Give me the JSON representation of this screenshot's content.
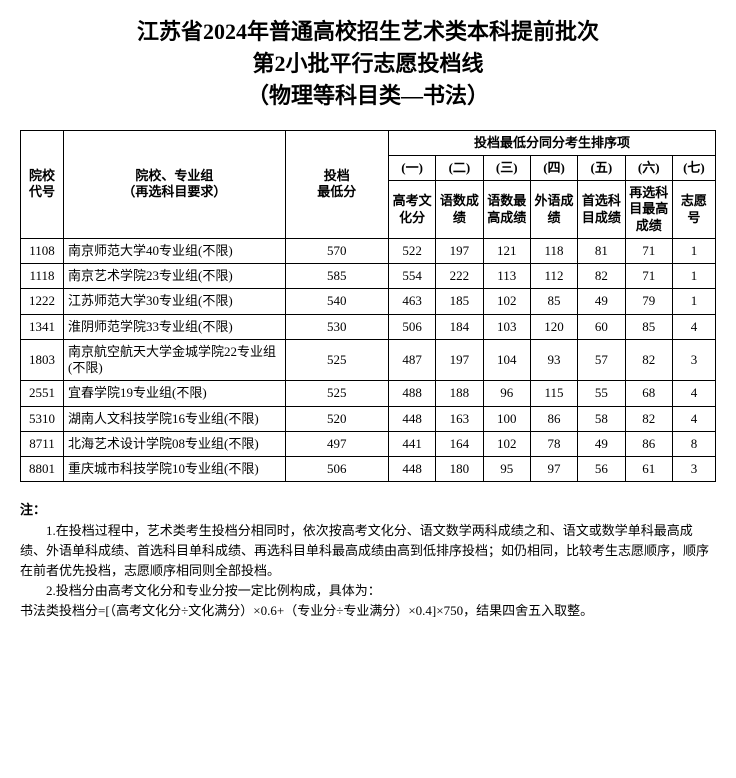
{
  "title_lines": [
    "江苏省2024年普通高校招生艺术类本科提前批次",
    "第2小批平行志愿投档线",
    "（物理等科目类—书法）"
  ],
  "header": {
    "code": "院校\n代号",
    "name": "院校、专业组\n（再选科目要求）",
    "score": "投档\n最低分",
    "tie_group": "投档最低分同分考生排序项",
    "tie_num": [
      "(一)",
      "(二)",
      "(三)",
      "(四)",
      "(五)",
      "(六)",
      "(七)"
    ],
    "tie_labels": [
      "高考文化分",
      "语数成绩",
      "语数最高成绩",
      "外语成绩",
      "首选科目成绩",
      "再选科目最高成绩",
      "志愿号"
    ]
  },
  "rows": [
    {
      "code": "1108",
      "name": "南京师范大学40专业组(不限)",
      "score": "570",
      "t": [
        "522",
        "197",
        "121",
        "118",
        "81",
        "71",
        "1"
      ]
    },
    {
      "code": "1118",
      "name": "南京艺术学院23专业组(不限)",
      "score": "585",
      "t": [
        "554",
        "222",
        "113",
        "112",
        "82",
        "71",
        "1"
      ]
    },
    {
      "code": "1222",
      "name": "江苏师范大学30专业组(不限)",
      "score": "540",
      "t": [
        "463",
        "185",
        "102",
        "85",
        "49",
        "79",
        "1"
      ]
    },
    {
      "code": "1341",
      "name": "淮阴师范学院33专业组(不限)",
      "score": "530",
      "t": [
        "506",
        "184",
        "103",
        "120",
        "60",
        "85",
        "4"
      ]
    },
    {
      "code": "1803",
      "name": "南京航空航天大学金城学院22专业组(不限)",
      "score": "525",
      "t": [
        "487",
        "197",
        "104",
        "93",
        "57",
        "82",
        "3"
      ]
    },
    {
      "code": "2551",
      "name": "宜春学院19专业组(不限)",
      "score": "525",
      "t": [
        "488",
        "188",
        "96",
        "115",
        "55",
        "68",
        "4"
      ]
    },
    {
      "code": "5310",
      "name": "湖南人文科技学院16专业组(不限)",
      "score": "520",
      "t": [
        "448",
        "163",
        "100",
        "86",
        "58",
        "82",
        "4"
      ]
    },
    {
      "code": "8711",
      "name": "北海艺术设计学院08专业组(不限)",
      "score": "497",
      "t": [
        "441",
        "164",
        "102",
        "78",
        "49",
        "86",
        "8"
      ]
    },
    {
      "code": "8801",
      "name": "重庆城市科技学院10专业组(不限)",
      "score": "506",
      "t": [
        "448",
        "180",
        "95",
        "97",
        "56",
        "61",
        "3"
      ]
    }
  ],
  "notes": {
    "header": "注：",
    "lines": [
      "1.在投档过程中，艺术类考生投档分相同时，依次按高考文化分、语文数学两科成绩之和、语文或数学单科最高成绩、外语单科成绩、首选科目单科成绩、再选科目单科最高成绩由高到低排序投档；如仍相同，比较考生志愿顺序，顺序在前者优先投档，志愿顺序相同则全部投档。",
      "2.投档分由高考文化分和专业分按一定比例构成，具体为：",
      "书法类投档分=[（高考文化分÷文化满分）×0.6+（专业分÷专业满分）×0.4]×750，结果四舍五入取整。"
    ]
  }
}
